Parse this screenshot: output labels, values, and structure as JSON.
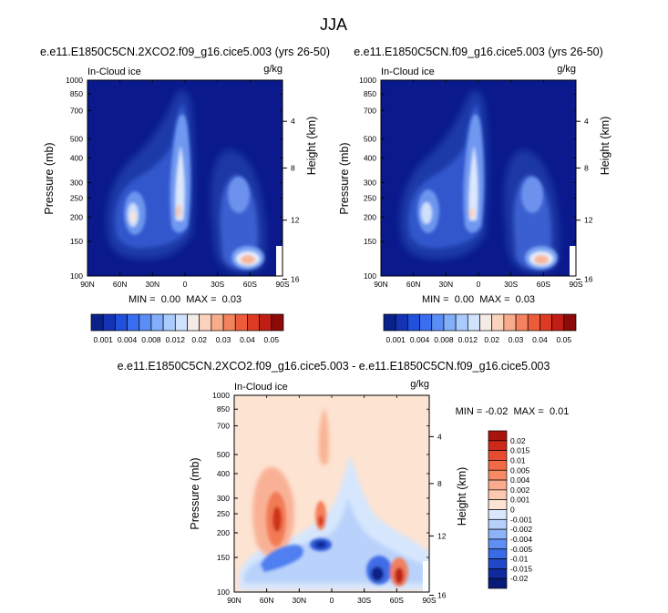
{
  "figure": {
    "main_title": "JJA"
  },
  "colors": {
    "deep_blue": "#0a1a8c",
    "pale_diff": "#fde3d2"
  },
  "chart_data": [
    {
      "id": "panel-left",
      "type": "heatmap",
      "title": "e.e11.E1850C5CN.2XCO2.f09_g16.cice5.003 (yrs 26-50)",
      "subtitle_left": "In-Cloud ice",
      "units": "g/kg",
      "xlabel": "",
      "ylabel": "Pressure (mb)",
      "ylabel_right": "Height (km)",
      "x_ticks": [
        "90N",
        "60N",
        "30N",
        "0",
        "30S",
        "60S",
        "90S"
      ],
      "y_ticks": [
        "100",
        "150",
        "200",
        "250",
        "300",
        "400",
        "500",
        "700",
        "850",
        "1000"
      ],
      "y_right_ticks": [
        "16",
        "12",
        "8",
        "4"
      ],
      "xlim": [
        90,
        -90
      ],
      "ylim": [
        1000,
        100
      ],
      "stats_text": "MIN =  0.00  MAX =  0.03",
      "min": 0.0,
      "max": 0.03
    },
    {
      "id": "panel-right",
      "type": "heatmap",
      "title": "e.e11.E1850C5CN.f09_g16.cice5.003 (yrs 26-50)",
      "subtitle_left": "In-Cloud ice",
      "units": "g/kg",
      "xlabel": "",
      "ylabel": "Pressure (mb)",
      "ylabel_right": "Height (km)",
      "x_ticks": [
        "90N",
        "60N",
        "30N",
        "0",
        "30S",
        "60S",
        "90S"
      ],
      "y_ticks": [
        "100",
        "150",
        "200",
        "250",
        "300",
        "400",
        "500",
        "700",
        "850",
        "1000"
      ],
      "y_right_ticks": [
        "16",
        "12",
        "8",
        "4"
      ],
      "xlim": [
        90,
        -90
      ],
      "ylim": [
        1000,
        100
      ],
      "stats_text": "MIN =  0.00  MAX =  0.03",
      "min": 0.0,
      "max": 0.03
    },
    {
      "id": "panel-diff",
      "type": "heatmap",
      "title": "e.e11.E1850C5CN.2XCO2.f09_g16.cice5.003 - e.e11.E1850C5CN.f09_g16.cice5.003",
      "subtitle_left": "In-Cloud ice",
      "units": "g/kg",
      "xlabel": "",
      "ylabel": "Pressure (mb)",
      "ylabel_right": "Height (km)",
      "x_ticks": [
        "90N",
        "60N",
        "30N",
        "0",
        "30S",
        "60S",
        "90S"
      ],
      "y_ticks": [
        "100",
        "150",
        "200",
        "250",
        "300",
        "400",
        "500",
        "700",
        "850",
        "1000"
      ],
      "y_right_ticks": [
        "16",
        "12",
        "8",
        "4"
      ],
      "xlim": [
        90,
        -90
      ],
      "ylim": [
        1000,
        100
      ],
      "stats_text": "MIN = -0.02  MAX =  0.01",
      "min": -0.02,
      "max": 0.01
    }
  ],
  "colorbar_abs": {
    "labels": [
      "0.001",
      "0.004",
      "0.008",
      "0.012",
      "0.02",
      "0.03",
      "0.04",
      "0.05"
    ],
    "colors": [
      "#08228a",
      "#1432b4",
      "#2050dc",
      "#3a6ef0",
      "#5b8df6",
      "#82aefa",
      "#a9cbfd",
      "#d0e2fe",
      "#f4ebe6",
      "#fbd3bd",
      "#f8ac8a",
      "#f4825e",
      "#ec5c3a",
      "#dc3a22",
      "#c01e14",
      "#8c0a08"
    ]
  },
  "colorbar_diff": {
    "labels": [
      "0.02",
      "0.015",
      "0.01",
      "0.005",
      "0.004",
      "0.002",
      "0.001",
      "0",
      "-0.001",
      "-0.002",
      "-0.004",
      "-0.005",
      "-0.01",
      "-0.015",
      "-0.02"
    ],
    "colors": [
      "#a8150c",
      "#cc2a1a",
      "#e84c2e",
      "#f26a46",
      "#f68a66",
      "#f9ab8d",
      "#fbc9b1",
      "#fde3d2",
      "#d9e8fd",
      "#b6d0fb",
      "#8cb2f8",
      "#5f8ff3",
      "#3a6be6",
      "#2148c8",
      "#0f2a9e",
      "#081a78"
    ]
  }
}
